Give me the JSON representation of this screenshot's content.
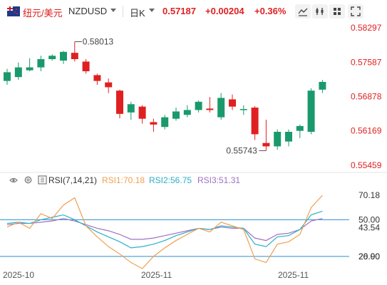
{
  "toolbar": {
    "pair_cn": "纽元/美元",
    "pair_code": "NZDUSD",
    "period": "日K",
    "last_price": "0.57187",
    "change": "+0.00204",
    "change_pct": "+0.36%",
    "buttons": [
      "chart-settings-icon",
      "indicator-icon",
      "layers-icon",
      "fullscreen-icon"
    ]
  },
  "colors": {
    "up": "#1a9a6c",
    "down": "#e02020",
    "axis_text_price": "#e02020",
    "rsi1": "#f0a050",
    "rsi2": "#2ab0c8",
    "rsi3": "#a070c0",
    "grid_line": "#2a8fd0"
  },
  "price_axis": {
    "labels": [
      "0.58297",
      "0.57587",
      "0.56878",
      "0.56169",
      "0.55459"
    ]
  },
  "annotations": {
    "high": "0.58013",
    "low": "0.55743"
  },
  "rsi": {
    "name": "RSI(7,14,21)",
    "rsi1_label": "RSI1:70.18",
    "rsi2_label": "RSI2:56.75",
    "rsi3_label": "RSI3:51.31",
    "axis_labels": [
      "70.18",
      "50.00",
      "43.54",
      "20.00",
      "26.90"
    ]
  },
  "date_axis": [
    "2025-10",
    "2025-11",
    "2025-11"
  ],
  "chart_data": {
    "type": "candlestick",
    "candles": [
      {
        "o": 0.572,
        "c": 0.5738,
        "h": 0.5745,
        "l": 0.5712
      },
      {
        "o": 0.5728,
        "c": 0.5748,
        "h": 0.5758,
        "l": 0.5722
      },
      {
        "o": 0.5742,
        "c": 0.5748,
        "h": 0.5767,
        "l": 0.574
      },
      {
        "o": 0.5748,
        "c": 0.5765,
        "h": 0.5772,
        "l": 0.574
      },
      {
        "o": 0.5765,
        "c": 0.5772,
        "h": 0.5775,
        "l": 0.5762
      },
      {
        "o": 0.5762,
        "c": 0.578,
        "h": 0.5782,
        "l": 0.5755
      },
      {
        "o": 0.5778,
        "c": 0.5765,
        "h": 0.5801,
        "l": 0.576
      },
      {
        "o": 0.576,
        "c": 0.574,
        "h": 0.5765,
        "l": 0.5735
      },
      {
        "o": 0.5732,
        "c": 0.572,
        "h": 0.5735,
        "l": 0.5712
      },
      {
        "o": 0.5717,
        "c": 0.5707,
        "h": 0.5725,
        "l": 0.5695
      },
      {
        "o": 0.57,
        "c": 0.5652,
        "h": 0.5702,
        "l": 0.5643
      },
      {
        "o": 0.5655,
        "c": 0.5672,
        "h": 0.5677,
        "l": 0.564
      },
      {
        "o": 0.5667,
        "c": 0.5642,
        "h": 0.567,
        "l": 0.5632
      },
      {
        "o": 0.5635,
        "c": 0.563,
        "h": 0.5642,
        "l": 0.5615
      },
      {
        "o": 0.5625,
        "c": 0.5645,
        "h": 0.565,
        "l": 0.562
      },
      {
        "o": 0.5642,
        "c": 0.5657,
        "h": 0.5665,
        "l": 0.5638
      },
      {
        "o": 0.565,
        "c": 0.566,
        "h": 0.567,
        "l": 0.5645
      },
      {
        "o": 0.566,
        "c": 0.5677,
        "h": 0.568,
        "l": 0.5655
      },
      {
        "o": 0.5663,
        "c": 0.566,
        "h": 0.5687,
        "l": 0.5655
      },
      {
        "o": 0.5645,
        "c": 0.5685,
        "h": 0.5695,
        "l": 0.564
      },
      {
        "o": 0.5682,
        "c": 0.5667,
        "h": 0.5692,
        "l": 0.566
      },
      {
        "o": 0.566,
        "c": 0.5662,
        "h": 0.567,
        "l": 0.565
      },
      {
        "o": 0.5665,
        "c": 0.561,
        "h": 0.5668,
        "l": 0.5598
      },
      {
        "o": 0.5592,
        "c": 0.5585,
        "h": 0.564,
        "l": 0.5576
      },
      {
        "o": 0.5585,
        "c": 0.5615,
        "h": 0.562,
        "l": 0.5578
      },
      {
        "o": 0.5595,
        "c": 0.5615,
        "h": 0.562,
        "l": 0.5585
      },
      {
        "o": 0.5617,
        "c": 0.5627,
        "h": 0.563,
        "l": 0.5602
      },
      {
        "o": 0.5615,
        "c": 0.57,
        "h": 0.5705,
        "l": 0.561
      },
      {
        "o": 0.5702,
        "c": 0.5718,
        "h": 0.5722,
        "l": 0.5695
      }
    ],
    "rsi1": [
      44,
      48,
      43,
      55,
      51,
      62,
      68,
      45,
      36,
      28,
      22,
      15,
      10,
      20,
      27,
      33,
      38,
      43,
      40,
      48,
      45,
      42,
      18,
      15,
      30,
      32,
      38,
      60,
      70
    ],
    "rsi2": [
      47,
      48,
      47,
      50,
      52,
      54,
      50,
      45,
      40,
      36,
      32,
      27,
      28,
      30,
      33,
      37,
      40,
      43,
      42,
      45,
      44,
      43,
      30,
      28,
      36,
      37,
      42,
      54,
      57
    ],
    "rsi3": [
      46,
      47,
      47,
      48,
      49,
      51,
      49,
      46,
      43,
      41,
      38,
      34,
      34,
      35,
      37,
      39,
      41,
      43,
      42,
      44,
      43,
      43,
      35,
      33,
      38,
      39,
      42,
      49,
      51
    ]
  }
}
